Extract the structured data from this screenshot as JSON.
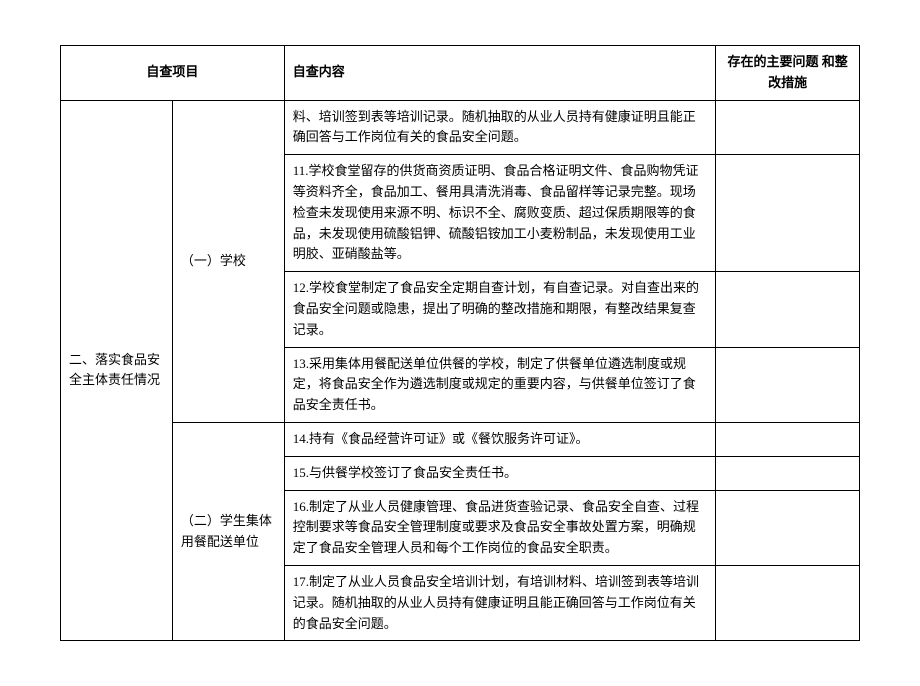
{
  "table": {
    "headers": {
      "project": "自查项目",
      "content": "自查内容",
      "issues": "存在的主要问题\n和整改措施"
    },
    "section": {
      "title": "二、落实食品安全主体责任情况",
      "sub1": {
        "title": "（一）学校",
        "rows": [
          "料、培训签到表等培训记录。随机抽取的从业人员持有健康证明且能正确回答与工作岗位有关的食品安全问题。",
          "11.学校食堂留存的供货商资质证明、食品合格证明文件、食品购物凭证等资料齐全，食品加工、餐用具清洗消毒、食品留样等记录完整。现场检查未发现使用来源不明、标识不全、腐败变质、超过保质期限等的食品，未发现使用硫酸铝钾、硫酸铝铵加工小麦粉制品，未发现使用工业明胶、亚硝酸盐等。",
          "12.学校食堂制定了食品安全定期自查计划，有自查记录。对自查出来的食品安全问题或隐患，提出了明确的整改措施和期限，有整改结果复查记录。",
          "13.采用集体用餐配送单位供餐的学校，制定了供餐单位遴选制度或规定，将食品安全作为遴选制度或规定的重要内容，与供餐单位签订了食品安全责任书。"
        ]
      },
      "sub2": {
        "title": "（二）学生集体用餐配送单位",
        "rows": [
          "14.持有《食品经营许可证》或《餐饮服务许可证》。",
          "15.与供餐学校签订了食品安全责任书。",
          "16.制定了从业人员健康管理、食品进货查验记录、食品安全自查、过程控制要求等食品安全管理制度或要求及食品安全事故处置方案，明确规定了食品安全管理人员和每个工作岗位的食品安全职责。",
          "17.制定了从业人员食品安全培训计划，有培训材料、培训签到表等培训记录。随机抽取的从业人员持有健康证明且能正确回答与工作岗位有关的食品安全问题。"
        ]
      }
    }
  }
}
